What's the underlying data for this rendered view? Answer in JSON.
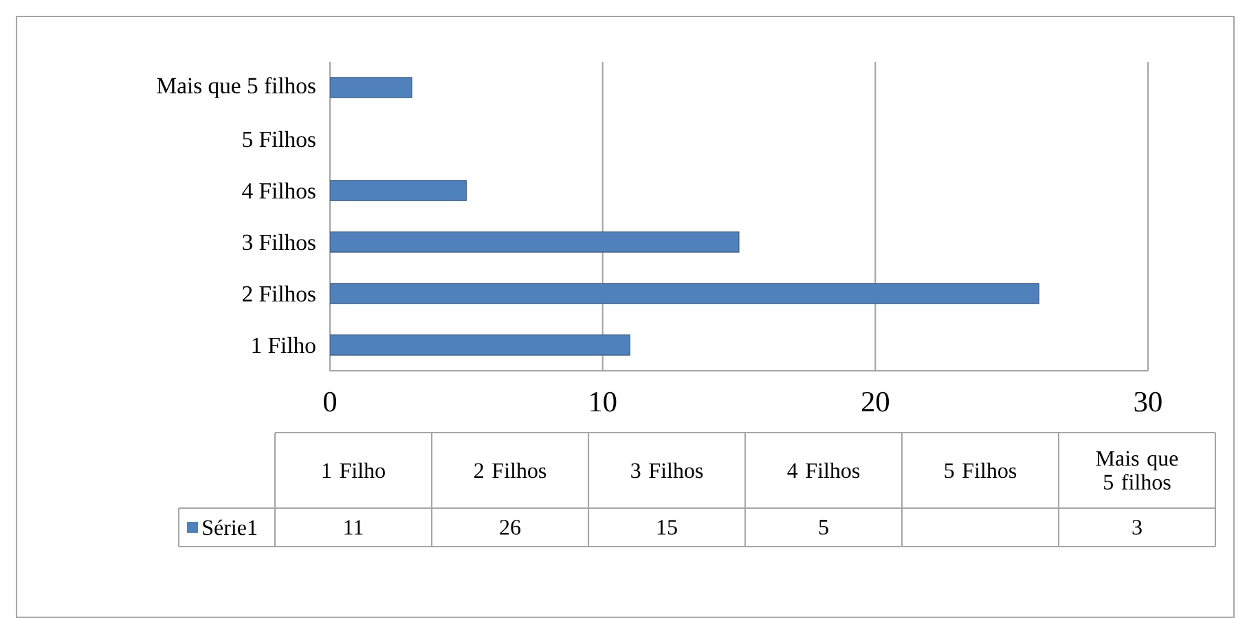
{
  "chart_data": {
    "type": "bar",
    "orientation": "horizontal",
    "categories": [
      "Mais que 5 filhos",
      "5 Filhos",
      "4 Filhos",
      "3 Filhos",
      "2 Filhos",
      "1 Filho"
    ],
    "series": [
      {
        "name": "Série1",
        "color": "#4f81bd",
        "values": [
          3,
          null,
          5,
          15,
          26,
          11
        ]
      }
    ],
    "value_labels": [
      "3",
      null,
      "5",
      "15",
      "26",
      "11"
    ],
    "xlim": [
      0,
      30
    ],
    "xticks": [
      0,
      10,
      20,
      30
    ],
    "grid": "x"
  }
}
